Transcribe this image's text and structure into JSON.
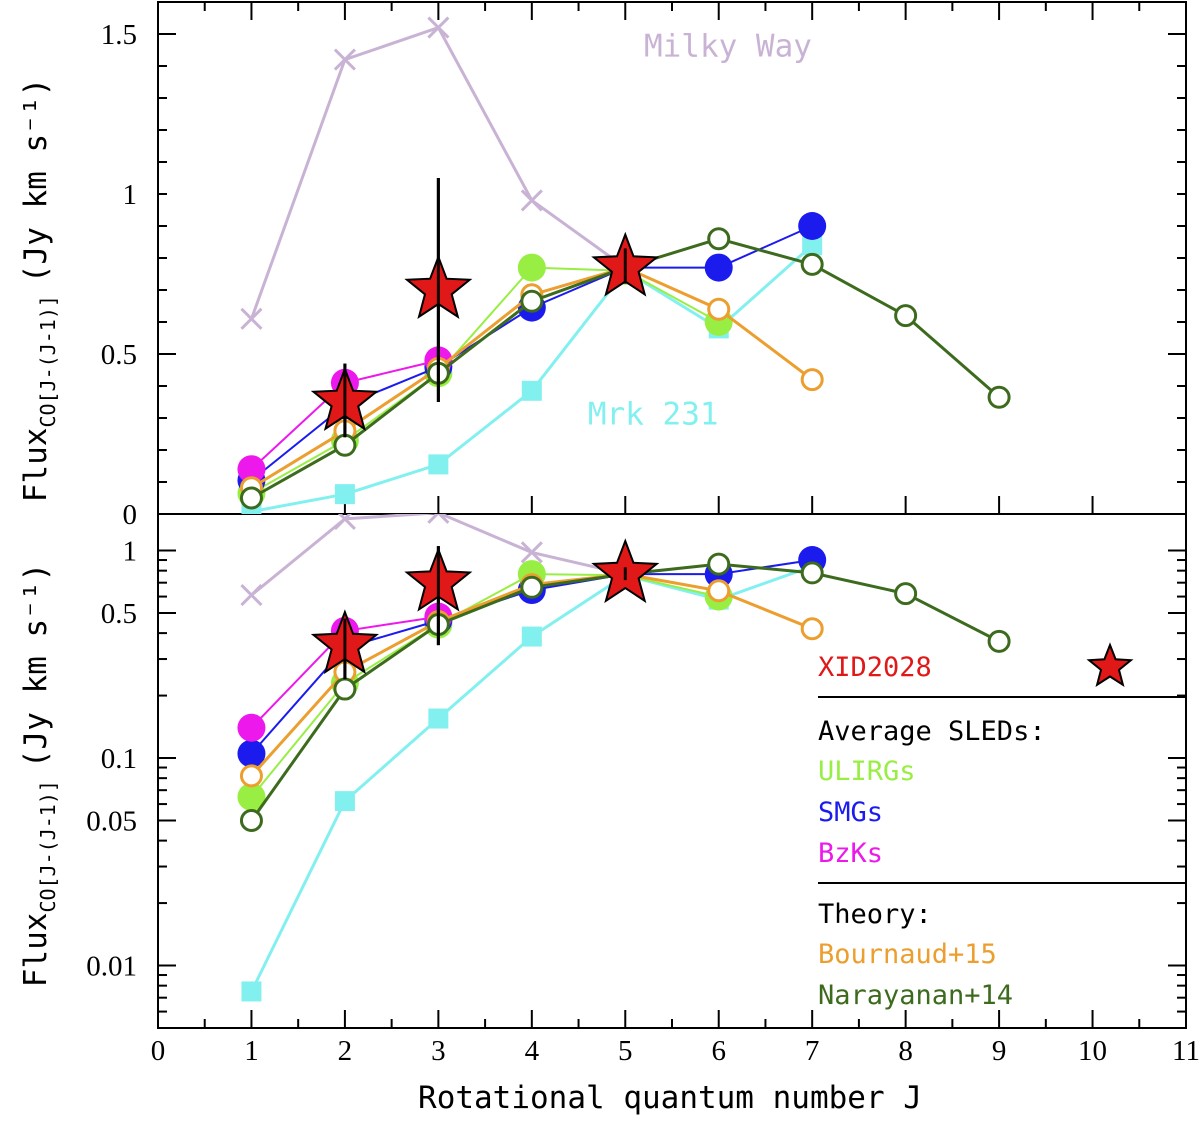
{
  "chart_data": {
    "type": "line",
    "xlabel": "Rotational quantum number J",
    "xlim": [
      0,
      11
    ],
    "x_ticks": [
      "0",
      "1",
      "2",
      "3",
      "4",
      "5",
      "6",
      "7",
      "8",
      "9",
      "10",
      "11"
    ],
    "panels": [
      {
        "name": "linear",
        "ylabel_main": "Flux",
        "ylabel_sub": "CO[J-(J-1)]",
        "ylabel_units": "(Jy km s⁻¹)",
        "scale": "linear",
        "ylim": [
          0,
          1.6
        ],
        "y_ticks": [
          "0",
          "0.5",
          "1",
          "1.5"
        ]
      },
      {
        "name": "log",
        "ylabel_main": "Flux",
        "ylabel_sub": "CO[J-(J-1)]",
        "ylabel_units": "(Jy km s⁻¹)",
        "scale": "log",
        "ylim": [
          0.005,
          1.5
        ],
        "y_ticks": [
          "0.01",
          "0.05",
          "0.1",
          "0.5",
          "1"
        ]
      }
    ],
    "series": [
      {
        "name": "Milky Way",
        "color": "#c9b3d5",
        "marker": "x",
        "x": [
          1,
          2,
          3,
          4,
          5
        ],
        "y": [
          0.61,
          1.42,
          1.52,
          0.98,
          0.77
        ]
      },
      {
        "name": "Mrk 231",
        "color": "#83f0f0",
        "marker": "square",
        "x": [
          1,
          2,
          3,
          4,
          5,
          6,
          7
        ],
        "y": [
          0.0075,
          0.062,
          0.155,
          0.385,
          0.76,
          0.58,
          0.84
        ]
      },
      {
        "name": "ULIRGs",
        "color": "#99ee44",
        "marker": "filled-circle",
        "x": [
          1,
          2,
          3,
          4,
          5,
          6
        ],
        "y": [
          0.065,
          0.23,
          0.44,
          0.77,
          0.76,
          0.6
        ]
      },
      {
        "name": "SMGs",
        "color": "#1b1bee",
        "marker": "filled-circle",
        "x": [
          1,
          2,
          3,
          4,
          5,
          6,
          7
        ],
        "y": [
          0.105,
          0.34,
          0.46,
          0.645,
          0.77,
          0.77,
          0.9
        ]
      },
      {
        "name": "BzKs",
        "color": "#ec18ec",
        "marker": "filled-circle",
        "x": [
          1,
          2,
          3
        ],
        "y": [
          0.14,
          0.41,
          0.48
        ]
      },
      {
        "name": "Bournaud+15",
        "color": "#ec9e2e",
        "marker": "open-circle",
        "x": [
          1,
          2,
          3,
          4,
          5,
          6,
          7
        ],
        "y": [
          0.082,
          0.26,
          0.455,
          0.685,
          0.77,
          0.64,
          0.42
        ]
      },
      {
        "name": "Narayanan+14",
        "color": "#3d6b1e",
        "marker": "open-circle",
        "x": [
          1,
          2,
          3,
          4,
          5,
          6,
          7,
          8,
          9
        ],
        "y": [
          0.05,
          0.215,
          0.44,
          0.665,
          0.77,
          0.86,
          0.78,
          0.62,
          0.365
        ]
      }
    ],
    "observations": {
      "name": "XID2028",
      "color": "#e01818",
      "marker": "star",
      "points": [
        {
          "x": 2,
          "y": 0.35,
          "err_low": 0.24,
          "err_high": 0.47
        },
        {
          "x": 3,
          "y": 0.7,
          "err_low": 0.35,
          "err_high": 1.05
        },
        {
          "x": 5,
          "y": 0.77,
          "err_low": 0.72,
          "err_high": 0.83
        }
      ]
    },
    "annotations": [
      {
        "text": "Milky Way",
        "color": "#c9b3d5",
        "panel": "linear",
        "x": 5.2,
        "y": 1.43
      },
      {
        "text": "Mrk 231",
        "color": "#83f0f0",
        "panel": "linear",
        "x": 4.6,
        "y": 0.28
      }
    ],
    "legend": {
      "location": "lower-right",
      "entries": [
        {
          "label": "XID2028",
          "color": "#e01818",
          "marker": "star"
        },
        {
          "label": "Average SLEDs:",
          "color": "#000000",
          "heading": true
        },
        {
          "label": "ULIRGs",
          "color": "#99ee44"
        },
        {
          "label": "SMGs",
          "color": "#1b1bee"
        },
        {
          "label": "BzKs",
          "color": "#ec18ec"
        },
        {
          "label": "Theory:",
          "color": "#000000",
          "heading": true
        },
        {
          "label": "Bournaud+15",
          "color": "#ec9e2e"
        },
        {
          "label": "Narayanan+14",
          "color": "#3d6b1e"
        }
      ]
    }
  }
}
